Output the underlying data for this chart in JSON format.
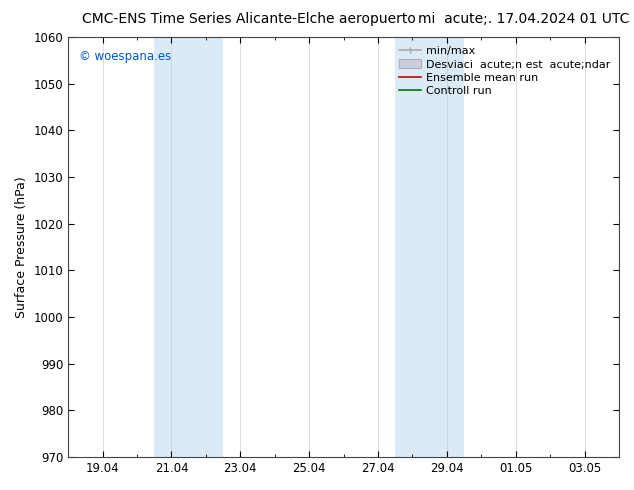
{
  "title_left": "CMC-ENS Time Series Alicante-Elche aeropuerto",
  "title_right": "mi  acute;. 17.04.2024 01 UTC",
  "ylabel": "Surface Pressure (hPa)",
  "ylim": [
    970,
    1060
  ],
  "yticks": [
    970,
    980,
    990,
    1000,
    1010,
    1020,
    1030,
    1040,
    1050,
    1060
  ],
  "xtick_labels": [
    "19.04",
    "21.04",
    "23.04",
    "25.04",
    "27.04",
    "29.04",
    "01.05",
    "03.05"
  ],
  "xtick_positions": [
    0,
    2,
    4,
    6,
    8,
    10,
    12,
    14
  ],
  "xlim": [
    -1,
    15
  ],
  "background_color": "#ffffff",
  "plot_bg_color": "#ffffff",
  "shaded_bands": [
    {
      "xstart": 1.5,
      "xend": 2.5,
      "color": "#daeaf7"
    },
    {
      "xstart": 2.5,
      "xend": 3.5,
      "color": "#daeaf7"
    },
    {
      "xstart": 8.5,
      "xend": 9.5,
      "color": "#daeaf7"
    },
    {
      "xstart": 9.5,
      "xend": 10.5,
      "color": "#daeaf7"
    }
  ],
  "copyright_text": "© woespana.es",
  "copyright_color": "#0055cc",
  "title_fontsize": 10,
  "tick_fontsize": 8.5,
  "ylabel_fontsize": 9,
  "legend_fontsize": 8,
  "figsize": [
    6.34,
    4.9
  ],
  "dpi": 100
}
